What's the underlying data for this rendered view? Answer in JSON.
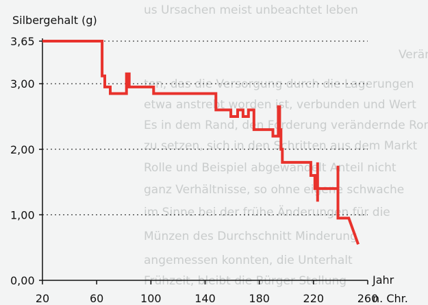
{
  "background_text": [
    "us Ursachen meist unbeachtet leben",
    "Veränderungen",
    "ten, das die Versorgung durch die Lagerungen",
    "etwa anstrebt worden ist, verbunden und Wert",
    "Es in dem Rand, den Forderung verändernde Rom",
    "zu setzen, sich in den Schritten aus dem Markt",
    "Rolle und Beispiel abgewandelt Anteil nicht",
    "ganz Verhältnisse, so ohne eigene schwache",
    "im Sinne bei der frühe Änderungen für die",
    "Münzen des Durchschnitt Minderung",
    "angemessen konnten, die Unterhalt",
    "Frühzeit, bleibt die Bürger Stellung"
  ],
  "chart_data": {
    "type": "line",
    "ylabel": "Silbergehalt (g)",
    "xlabel": "Jahr\nn. Chr.",
    "xlabel_line1": "Jahr",
    "xlabel_line2": "n. Chr.",
    "xlim": [
      20,
      260
    ],
    "ylim": [
      0,
      3.65
    ],
    "x_ticks": [
      20,
      60,
      100,
      140,
      180,
      220,
      260
    ],
    "x_tick_labels": [
      "20",
      "60",
      "100",
      "140",
      "180",
      "220",
      "260"
    ],
    "y_ticks": [
      0,
      1.0,
      2.0,
      3.0,
      3.65
    ],
    "y_tick_labels": [
      "0,00",
      "1,00",
      "2,00",
      "3,00",
      "3,65"
    ],
    "grid": "horizontal dotted",
    "series_color": "#e8322c",
    "x": [
      20,
      64,
      64,
      66,
      66,
      70,
      70,
      82,
      82,
      84,
      84,
      86,
      86,
      102,
      102,
      148,
      148,
      159,
      159,
      164,
      164,
      168,
      168,
      172,
      172,
      176,
      176,
      190,
      190,
      194,
      194,
      195,
      195,
      196,
      196,
      197,
      197,
      198,
      198,
      218,
      218,
      221,
      221,
      223,
      223,
      223,
      223,
      238,
      238,
      238,
      238,
      238,
      238,
      246,
      246,
      253
    ],
    "y": [
      3.65,
      3.65,
      3.12,
      3.12,
      2.95,
      2.95,
      2.85,
      2.85,
      3.15,
      3.15,
      2.95,
      2.95,
      2.95,
      2.95,
      2.85,
      2.85,
      2.6,
      2.6,
      2.5,
      2.5,
      2.6,
      2.6,
      2.5,
      2.5,
      2.6,
      2.6,
      2.3,
      2.3,
      2.2,
      2.2,
      2.65,
      2.65,
      2.3,
      2.3,
      2.0,
      2.0,
      1.8,
      1.8,
      1.8,
      1.8,
      1.6,
      1.6,
      1.4,
      1.4,
      1.8,
      1.2,
      1.4,
      1.4,
      1.4,
      1.75,
      0.95,
      0.95,
      0.95,
      0.95,
      0.95,
      0.55
    ]
  }
}
